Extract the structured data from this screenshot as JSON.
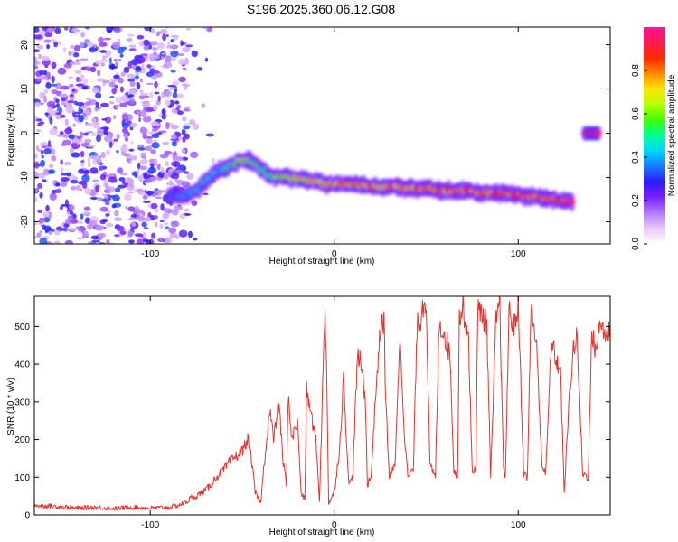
{
  "title": "S196.2025.360.06.12.G08",
  "colors": {
    "line": "#e8302b",
    "axis": "#000000",
    "colormap": [
      "#ffffff",
      "#e6c8f5",
      "#b47bff",
      "#7a1fff",
      "#2a1bff",
      "#1a78ff",
      "#00d6ff",
      "#00ff9a",
      "#3cff00",
      "#b4ff00",
      "#ffe600",
      "#ff8a00",
      "#ff2a00",
      "#ff1a4f",
      "#ff1493"
    ]
  },
  "chart_data": [
    {
      "type": "heatmap",
      "title": "S196.2025.360.06.12.G08",
      "xlabel": "Height of straight line (km)",
      "ylabel": "Frequency (Hz)",
      "xlim": [
        -163,
        150
      ],
      "ylim": [
        -25,
        24
      ],
      "xticks": [
        -100,
        0,
        100
      ],
      "xtick_labels": [
        "-100",
        "0",
        "100"
      ],
      "yticks": [
        -20,
        -10,
        0,
        10,
        20
      ],
      "ytick_labels": [
        "-20",
        "-10",
        "0",
        "10",
        "20"
      ],
      "noise_region_x": [
        -163,
        -80
      ],
      "ridge": {
        "x": [
          -90,
          -82,
          -75,
          -70,
          -65,
          -60,
          -55,
          -50,
          -45,
          -40,
          -35,
          -30,
          -25,
          -20,
          -15,
          -10,
          -5,
          0,
          10,
          20,
          30,
          40,
          50,
          60,
          70,
          80,
          90,
          100,
          110,
          120,
          130
        ],
        "frequency": [
          -14,
          -14,
          -13,
          -11,
          -9,
          -8,
          -7,
          -6,
          -6.5,
          -8,
          -9.5,
          -10,
          -10,
          -10.5,
          -10.5,
          -11,
          -11.5,
          -11.5,
          -11.5,
          -12,
          -12,
          -12.5,
          -12.5,
          -13,
          -13,
          -13.5,
          -13.5,
          -14,
          -14.5,
          -15,
          -15.5
        ],
        "amplitude": [
          0.35,
          0.4,
          0.4,
          0.45,
          0.45,
          0.5,
          0.55,
          0.65,
          0.6,
          0.55,
          0.6,
          0.65,
          0.7,
          0.7,
          0.75,
          0.78,
          0.8,
          0.8,
          0.82,
          0.85,
          0.85,
          0.87,
          0.87,
          0.9,
          0.9,
          0.9,
          0.9,
          0.92,
          0.92,
          0.92,
          0.95
        ]
      },
      "secondary_ridge": {
        "x": [
          136,
          144
        ],
        "frequency": [
          0,
          0
        ],
        "amplitude": 0.95
      },
      "colorbar": {
        "label": "Normalized spectral amplitude",
        "range": [
          0.0,
          1.0
        ],
        "ticks": [
          0.0,
          0.2,
          0.4,
          0.6,
          0.8
        ],
        "tick_labels": [
          "0.0",
          "0.2",
          "0.4",
          "0.6",
          "0.8"
        ]
      }
    },
    {
      "type": "line",
      "xlabel": "Height of straight line (km)",
      "ylabel": "SNR (10 * v/v)",
      "xlim": [
        -163,
        150
      ],
      "ylim": [
        0,
        580
      ],
      "xticks": [
        -100,
        0,
        100
      ],
      "xtick_labels": [
        "-100",
        "0",
        "100"
      ],
      "yticks": [
        0,
        100,
        200,
        300,
        400,
        500
      ],
      "ytick_labels": [
        "0",
        "100",
        "200",
        "300",
        "400",
        "500"
      ],
      "series": [
        {
          "name": "SNR",
          "x": [
            -163,
            -150,
            -140,
            -130,
            -120,
            -110,
            -100,
            -90,
            -85,
            -80,
            -78,
            -75,
            -72,
            -70,
            -67,
            -65,
            -62,
            -60,
            -57,
            -55,
            -52,
            -50,
            -47,
            -45,
            -43,
            -41,
            -40,
            -38,
            -35,
            -33,
            -30,
            -28,
            -26,
            -25,
            -23,
            -20,
            -18,
            -16,
            -15,
            -12,
            -10,
            -8,
            -5,
            -4,
            -3,
            0,
            3,
            5,
            8,
            10,
            12,
            13,
            15,
            17,
            18,
            20,
            23,
            25,
            27,
            28,
            30,
            33,
            35,
            36,
            38,
            40,
            43,
            45,
            47,
            48,
            50,
            52,
            55,
            57,
            60,
            63,
            65,
            67,
            68,
            70,
            73,
            75,
            77,
            78,
            80,
            83,
            85,
            88,
            90,
            92,
            93,
            95,
            98,
            100,
            103,
            105,
            107,
            108,
            110,
            113,
            115,
            118,
            120,
            123,
            125,
            128,
            130,
            132,
            135,
            138,
            140,
            142,
            145,
            148,
            150
          ],
          "y": [
            25,
            22,
            18,
            20,
            17,
            20,
            18,
            20,
            25,
            35,
            45,
            50,
            60,
            65,
            80,
            95,
            110,
            120,
            140,
            150,
            160,
            170,
            200,
            150,
            60,
            40,
            30,
            140,
            280,
            200,
            300,
            150,
            80,
            320,
            200,
            250,
            60,
            40,
            330,
            250,
            200,
            40,
            560,
            350,
            30,
            60,
            180,
            360,
            80,
            100,
            350,
            420,
            390,
            300,
            80,
            100,
            360,
            480,
            520,
            300,
            100,
            130,
            400,
            450,
            230,
            100,
            120,
            500,
            520,
            560,
            570,
            130,
            100,
            510,
            480,
            420,
            120,
            100,
            520,
            550,
            470,
            110,
            130,
            540,
            540,
            500,
            100,
            520,
            560,
            120,
            100,
            540,
            500,
            560,
            110,
            100,
            560,
            520,
            440,
            130,
            110,
            460,
            420,
            380,
            60,
            330,
            440,
            470,
            110,
            100,
            480,
            440,
            510,
            470,
            500
          ]
        }
      ]
    }
  ]
}
